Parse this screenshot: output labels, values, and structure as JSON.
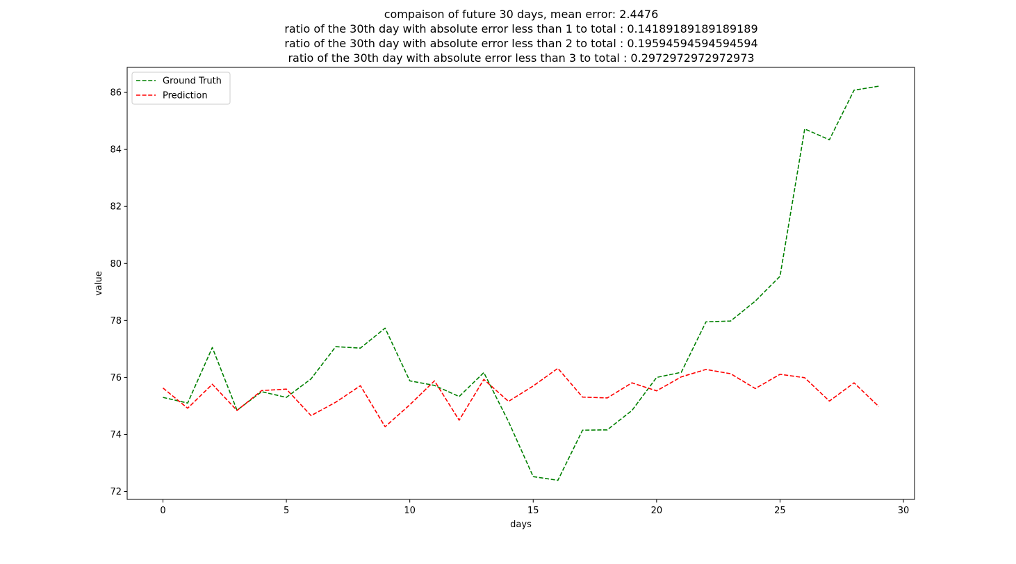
{
  "chart_data": {
    "type": "line",
    "title_lines": [
      "compaison of future 30 days, mean error: 2.4476",
      "ratio of the 30th day with absolute error less than 1 to total : 0.14189189189189189",
      "ratio of the 30th day with absolute error less than 2 to total : 0.19594594594594594",
      "ratio of the 30th day with absolute error less than 3 to total : 0.2972972972972973"
    ],
    "xlabel": "days",
    "ylabel": "value",
    "xlim": [
      -1.45,
      30.45
    ],
    "ylim": [
      71.72,
      86.88
    ],
    "xticks": [
      0,
      5,
      10,
      15,
      20,
      25,
      30
    ],
    "yticks": [
      72,
      74,
      76,
      78,
      80,
      82,
      84,
      86
    ],
    "grid": false,
    "legend_position": "upper-left",
    "x": [
      0,
      1,
      2,
      3,
      4,
      5,
      6,
      7,
      8,
      9,
      10,
      11,
      12,
      13,
      14,
      15,
      16,
      17,
      18,
      19,
      20,
      21,
      22,
      23,
      24,
      25,
      26,
      27,
      28,
      29
    ],
    "series": [
      {
        "name": "Ground Truth",
        "color": "#008000",
        "line_style": "dashed",
        "values": [
          75.3,
          75.1,
          77.05,
          74.85,
          75.5,
          75.3,
          75.95,
          77.08,
          77.03,
          77.73,
          75.88,
          75.72,
          75.33,
          76.17,
          74.45,
          72.52,
          72.39,
          74.15,
          74.16,
          74.84,
          76.0,
          76.18,
          77.95,
          77.98,
          78.68,
          79.55,
          84.72,
          84.34,
          86.08,
          86.22
        ]
      },
      {
        "name": "Prediction",
        "color": "#ff0000",
        "line_style": "dashed",
        "values": [
          75.63,
          74.92,
          75.76,
          74.84,
          75.54,
          75.59,
          74.66,
          75.13,
          75.71,
          74.27,
          75.04,
          75.88,
          74.5,
          75.93,
          75.16,
          75.7,
          76.32,
          75.31,
          75.28,
          75.81,
          75.53,
          76.02,
          76.28,
          76.13,
          75.61,
          76.11,
          75.99,
          75.17,
          75.81,
          74.98
        ]
      }
    ]
  }
}
